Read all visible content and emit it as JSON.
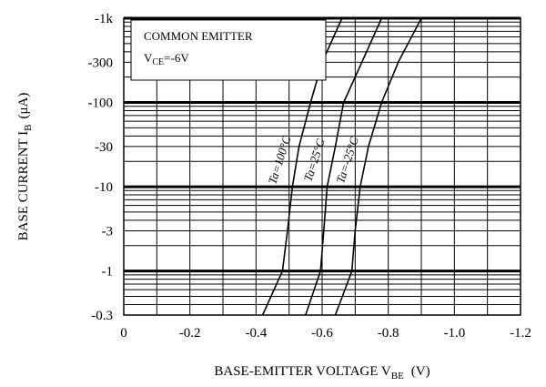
{
  "chart_data": {
    "type": "line",
    "title": "",
    "xlabel": {
      "main": "BASE-EMITTER VOLTAGE V",
      "sub": "BE",
      "unit": "(V)"
    },
    "ylabel": {
      "main": "BASE CURRENT I",
      "sub": "B",
      "unit": "(μA)"
    },
    "xlim": [
      0,
      -1.2
    ],
    "ylim": [
      -0.3,
      -1000
    ],
    "yscale": "log",
    "grid": true,
    "x_ticks": [
      {
        "value": 0,
        "label": "0"
      },
      {
        "value": -0.2,
        "label": "-0.2"
      },
      {
        "value": -0.4,
        "label": "-0.4"
      },
      {
        "value": -0.6,
        "label": "-0.6"
      },
      {
        "value": -0.8,
        "label": "-0.8"
      },
      {
        "value": -1.0,
        "label": "-1.0"
      },
      {
        "value": -1.2,
        "label": "-1.2"
      }
    ],
    "y_ticks": [
      {
        "value": -0.3,
        "label": "-0.3"
      },
      {
        "value": -1,
        "label": "-1"
      },
      {
        "value": -3,
        "label": "-3"
      },
      {
        "value": -10,
        "label": "-10"
      },
      {
        "value": -30,
        "label": "-30"
      },
      {
        "value": -100,
        "label": "-100"
      },
      {
        "value": -300,
        "label": "-300"
      },
      {
        "value": -1000,
        "label": "-1k"
      }
    ],
    "legend_box": {
      "line1": "COMMON EMITTER",
      "line2_main": "V",
      "line2_sub": "CE",
      "line2_rest": "=-6V",
      "placement": "top-left"
    },
    "series": [
      {
        "name": "Ta=100°C",
        "label": "Ta=100°C",
        "points": [
          [
            -0.42,
            -0.3
          ],
          [
            -0.48,
            -1
          ],
          [
            -0.495,
            -3
          ],
          [
            -0.51,
            -10
          ],
          [
            -0.53,
            -30
          ],
          [
            -0.565,
            -100
          ],
          [
            -0.6,
            -300
          ],
          [
            -0.66,
            -1000
          ]
        ]
      },
      {
        "name": "Ta=25°C",
        "label": "Ta=25°C",
        "points": [
          [
            -0.55,
            -0.3
          ],
          [
            -0.595,
            -1
          ],
          [
            -0.605,
            -3
          ],
          [
            -0.615,
            -10
          ],
          [
            -0.64,
            -30
          ],
          [
            -0.665,
            -100
          ],
          [
            -0.72,
            -300
          ],
          [
            -0.78,
            -1000
          ]
        ]
      },
      {
        "name": "Ta=-25°C",
        "label": "Ta=-25°C",
        "points": [
          [
            -0.64,
            -0.3
          ],
          [
            -0.69,
            -1
          ],
          [
            -0.7,
            -3
          ],
          [
            -0.715,
            -10
          ],
          [
            -0.74,
            -30
          ],
          [
            -0.78,
            -100
          ],
          [
            -0.83,
            -300
          ],
          [
            -0.9,
            -1000
          ]
        ]
      }
    ]
  }
}
